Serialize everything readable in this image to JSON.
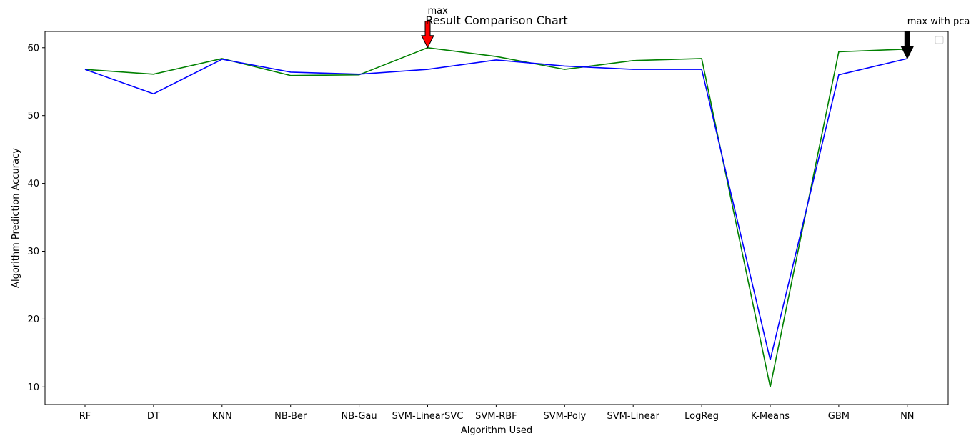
{
  "chart_data": {
    "type": "line",
    "title": "Result Comparison Chart",
    "xlabel": "Algorithm Used",
    "ylabel": "Algorithm Prediction Accuracy",
    "categories": [
      "RF",
      "DT",
      "KNN",
      "NB-Ber",
      "NB-Gau",
      "SVM-LinearSVC",
      "SVM-RBF",
      "SVM-Poly",
      "SVM-Linear",
      "LogReg",
      "K-Means",
      "GBM",
      "NN"
    ],
    "y_ticks": [
      10,
      20,
      30,
      40,
      50,
      60
    ],
    "ylim": [
      7.4,
      62.4
    ],
    "grid": false,
    "legend": "top-right (empty)",
    "series": [
      {
        "color": "#008000",
        "values": [
          56.8,
          56.1,
          58.4,
          55.9,
          56.0,
          60.0,
          58.7,
          56.8,
          58.1,
          58.4,
          10.0,
          59.4,
          59.8
        ]
      },
      {
        "color": "#0000ff",
        "values": [
          56.8,
          53.2,
          58.3,
          56.4,
          56.1,
          56.8,
          58.2,
          57.3,
          56.8,
          56.8,
          14.0,
          56.0,
          58.4
        ]
      }
    ],
    "annotations": [
      {
        "text": "max",
        "category": "SVM-LinearSVC",
        "value": 60.0,
        "arrow_color": "#ff0000"
      },
      {
        "text": "max with pca",
        "category": "NN",
        "value": 58.4,
        "arrow_color": "#000000"
      }
    ]
  }
}
